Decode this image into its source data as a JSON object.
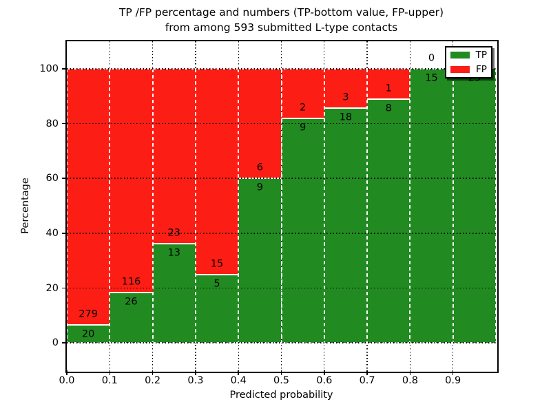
{
  "chart_data": {
    "type": "bar",
    "stacked": true,
    "title": "TP /FP percentage and numbers (TP-bottom value, FP-upper)",
    "subtitle": "from among 593 submitted L-type contacts",
    "xlabel": "Predicted probability",
    "ylabel": "Percentage",
    "xlim": [
      0.0,
      1.0
    ],
    "ylim": [
      -10,
      110
    ],
    "xticks": [
      "0.0",
      "0.1",
      "0.2",
      "0.3",
      "0.4",
      "0.5",
      "0.6",
      "0.7",
      "0.8",
      "0.9"
    ],
    "yticks": [
      "0",
      "20",
      "40",
      "60",
      "80",
      "100"
    ],
    "grid": true,
    "legend": {
      "position": "upper right",
      "entries": [
        {
          "label": "TP",
          "color": "#218a21"
        },
        {
          "label": "FP",
          "color": "#fc1d15"
        }
      ]
    },
    "total_contacts": 593,
    "normalization": "each 0.1-wide bin scaled to 100%; green bottom = TP share, red top = FP share; numeric labels show raw counts (TP below boundary, FP above boundary)",
    "bins": [
      {
        "x0": 0.0,
        "x1": 0.1,
        "tp": 20,
        "fp": 279,
        "tp_pct": 6.7
      },
      {
        "x0": 0.1,
        "x1": 0.2,
        "tp": 26,
        "fp": 116,
        "tp_pct": 18.3
      },
      {
        "x0": 0.2,
        "x1": 0.3,
        "tp": 13,
        "fp": 23,
        "tp_pct": 36.1
      },
      {
        "x0": 0.3,
        "x1": 0.4,
        "tp": 5,
        "fp": 15,
        "tp_pct": 25.0
      },
      {
        "x0": 0.4,
        "x1": 0.5,
        "tp": 9,
        "fp": 6,
        "tp_pct": 60.0
      },
      {
        "x0": 0.5,
        "x1": 0.6,
        "tp": 9,
        "fp": 2,
        "tp_pct": 81.8
      },
      {
        "x0": 0.6,
        "x1": 0.7,
        "tp": 18,
        "fp": 3,
        "tp_pct": 85.7
      },
      {
        "x0": 0.7,
        "x1": 0.8,
        "tp": 8,
        "fp": 1,
        "tp_pct": 88.9
      },
      {
        "x0": 0.8,
        "x1": 0.9,
        "tp": 15,
        "fp": 0,
        "tp_pct": 100.0
      },
      {
        "x0": 0.9,
        "x1": 1.0,
        "tp": 25,
        "fp": 0,
        "tp_pct": 100.0
      }
    ],
    "colors": {
      "tp": "#218a21",
      "fp": "#fc1d15",
      "grid": "#000000",
      "bar_edge": "#ffffff"
    }
  }
}
